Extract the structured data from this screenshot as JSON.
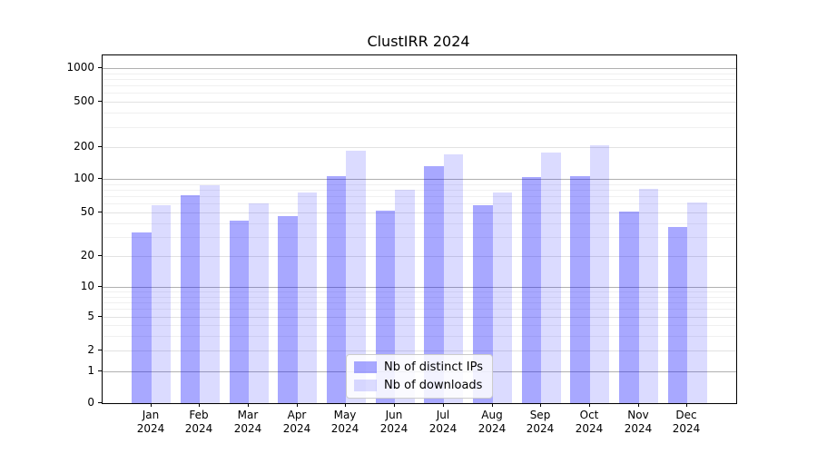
{
  "title": "ClustIRR 2024",
  "chart_data": {
    "type": "bar",
    "title": "ClustIRR 2024",
    "xlabel": "",
    "ylabel": "",
    "categories": [
      "Jan",
      "Feb",
      "Mar",
      "Apr",
      "May",
      "Jun",
      "Jul",
      "Aug",
      "Sep",
      "Oct",
      "Nov",
      "Dec"
    ],
    "year_label": "2024",
    "series": [
      {
        "name": "Nb of distinct IPs",
        "color": "#0000ff",
        "alpha": 0.34,
        "values": [
          33,
          71,
          42,
          46,
          107,
          52,
          131,
          58,
          104,
          106,
          51,
          37
        ]
      },
      {
        "name": "Nb of downloads",
        "color": "#0000ff",
        "alpha": 0.14,
        "values": [
          58,
          88,
          60,
          75,
          185,
          80,
          171,
          75,
          176,
          206,
          82,
          62
        ]
      }
    ],
    "yscale": "symlog",
    "yticks": [
      0,
      1,
      2,
      5,
      10,
      20,
      50,
      100,
      200,
      500,
      1000
    ],
    "ylim": [
      0,
      1300
    ],
    "grid": "horizontal",
    "legend_position": "lower center"
  }
}
